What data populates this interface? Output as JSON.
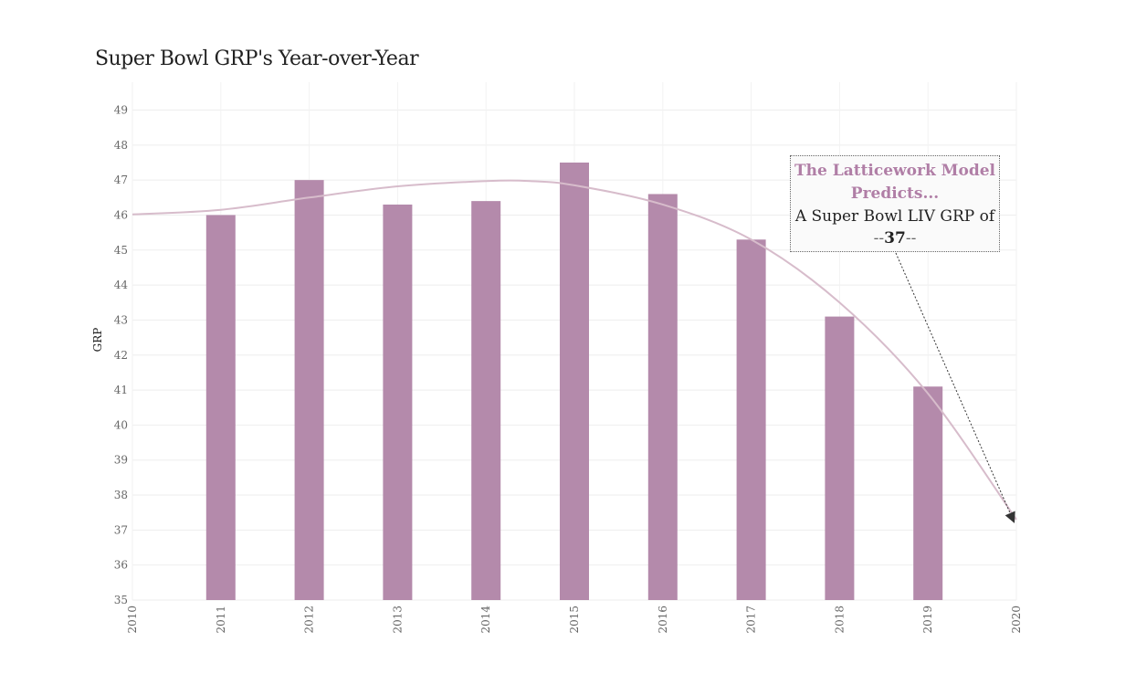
{
  "chart_data": {
    "type": "bar",
    "title": "Super Bowl GRP's Year-over-Year",
    "xlabel": "",
    "ylabel": "GRP",
    "x_ticks": [
      "2010",
      "2011",
      "2012",
      "2013",
      "2014",
      "2015",
      "2016",
      "2017",
      "2018",
      "2019",
      "2020"
    ],
    "y_ticks": [
      35,
      36,
      37,
      38,
      39,
      40,
      41,
      42,
      43,
      44,
      45,
      46,
      47,
      48,
      49
    ],
    "categories": [
      "2011",
      "2012",
      "2013",
      "2014",
      "2015",
      "2016",
      "2017",
      "2018",
      "2019"
    ],
    "values": [
      46.0,
      47.0,
      46.3,
      46.4,
      47.5,
      46.6,
      45.3,
      43.1,
      41.1
    ],
    "xlim": [
      2010,
      2020
    ],
    "ylim": [
      35,
      49.5
    ],
    "grid": true,
    "bar_color": "#b48aab",
    "trend_line": {
      "color": "#d7bccb",
      "points": [
        [
          2010,
          46.02
        ],
        [
          2011,
          46.15
        ],
        [
          2012,
          46.5
        ],
        [
          2013,
          46.82
        ],
        [
          2014,
          46.97
        ],
        [
          2014.5,
          46.97
        ],
        [
          2015,
          46.85
        ],
        [
          2016,
          46.3
        ],
        [
          2017,
          45.3
        ],
        [
          2018,
          43.5
        ],
        [
          2019,
          40.9
        ],
        [
          2020,
          37.3
        ]
      ]
    },
    "annotation": {
      "heading": "The Latticework Model Predicts...",
      "body": "A Super Bowl LIV GRP of",
      "value_prefix": "--",
      "value": "37",
      "value_suffix": "--",
      "arrow_target": [
        2020,
        37.3
      ],
      "heading_color": "#b07ea6"
    }
  }
}
